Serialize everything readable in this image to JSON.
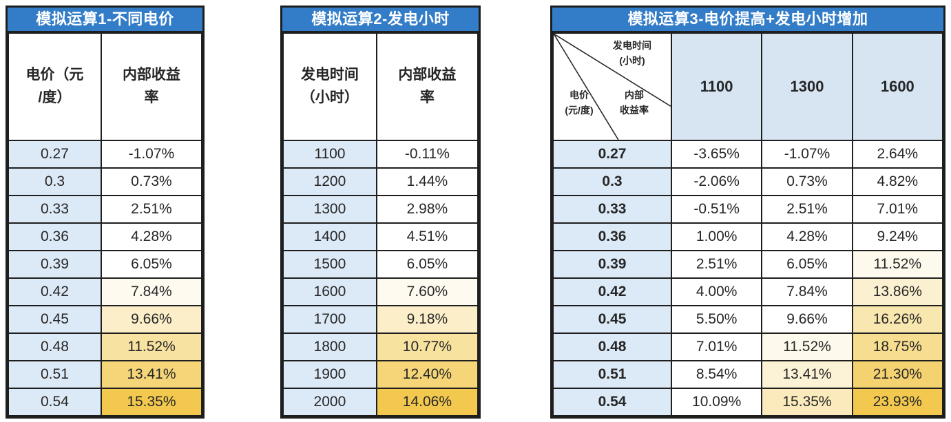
{
  "colors": {
    "title_bar": "#337cc7",
    "title_text": "#ffffff",
    "border": "#1e1e1e",
    "text": "#262626",
    "key_column_blue": "#dce9f6",
    "header_blue": "#d7e5f3",
    "scale_start": "#ffffff",
    "scale_end": "#f2c84e"
  },
  "tables": [
    {
      "title": "模拟运算1-不同电价",
      "key_header": "电价（元\n/度）",
      "value_header": "内部收益\n率",
      "scale": {
        "min": -1.07,
        "max": 15.35,
        "white_until_fraction": 0.5
      },
      "rows": [
        {
          "key": "0.27",
          "value": "-1.07%"
        },
        {
          "key": "0.3",
          "value": "0.73%"
        },
        {
          "key": "0.33",
          "value": "2.51%"
        },
        {
          "key": "0.36",
          "value": "4.28%"
        },
        {
          "key": "0.39",
          "value": "6.05%"
        },
        {
          "key": "0.42",
          "value": "7.84%"
        },
        {
          "key": "0.45",
          "value": "9.66%"
        },
        {
          "key": "0.48",
          "value": "11.52%"
        },
        {
          "key": "0.51",
          "value": "13.41%"
        },
        {
          "key": "0.54",
          "value": "15.35%"
        }
      ]
    },
    {
      "title": "模拟运算2-发电小时",
      "key_header": "发电时间\n（小时）",
      "value_header": "内部收益\n率",
      "scale": {
        "min": -0.11,
        "max": 14.06,
        "white_until_fraction": 0.5
      },
      "rows": [
        {
          "key": "1100",
          "value": "-0.11%"
        },
        {
          "key": "1200",
          "value": "1.44%"
        },
        {
          "key": "1300",
          "value": "2.98%"
        },
        {
          "key": "1400",
          "value": "4.51%"
        },
        {
          "key": "1500",
          "value": "6.05%"
        },
        {
          "key": "1600",
          "value": "7.60%"
        },
        {
          "key": "1700",
          "value": "9.18%"
        },
        {
          "key": "1800",
          "value": "10.77%"
        },
        {
          "key": "1900",
          "value": "12.40%"
        },
        {
          "key": "2000",
          "value": "14.06%"
        }
      ]
    },
    {
      "title": "模拟运算3-电价提高+发电小时增加",
      "corner": {
        "col_label": "发电时间\n(小时)",
        "row_label": "电价\n(元/度)",
        "metric_label": "内部\n收益率"
      },
      "col_headers": [
        "1100",
        "1300",
        "1600"
      ],
      "scale": {
        "min": -3.65,
        "max": 23.93,
        "white_until_fraction": 0.5
      },
      "rows": [
        {
          "key": "0.27",
          "values": [
            "-3.65%",
            "-1.07%",
            "2.64%"
          ]
        },
        {
          "key": "0.3",
          "values": [
            "-2.06%",
            "0.73%",
            "4.82%"
          ]
        },
        {
          "key": "0.33",
          "values": [
            "-0.51%",
            "2.51%",
            "7.01%"
          ]
        },
        {
          "key": "0.36",
          "values": [
            "1.00%",
            "4.28%",
            "9.24%"
          ]
        },
        {
          "key": "0.39",
          "values": [
            "2.51%",
            "6.05%",
            "11.52%"
          ]
        },
        {
          "key": "0.42",
          "values": [
            "4.00%",
            "7.84%",
            "13.86%"
          ]
        },
        {
          "key": "0.45",
          "values": [
            "5.50%",
            "9.66%",
            "16.26%"
          ]
        },
        {
          "key": "0.48",
          "values": [
            "7.01%",
            "11.52%",
            "18.75%"
          ]
        },
        {
          "key": "0.51",
          "values": [
            "8.54%",
            "13.41%",
            "21.30%"
          ]
        },
        {
          "key": "0.54",
          "values": [
            "10.09%",
            "15.35%",
            "23.93%"
          ]
        }
      ]
    }
  ]
}
